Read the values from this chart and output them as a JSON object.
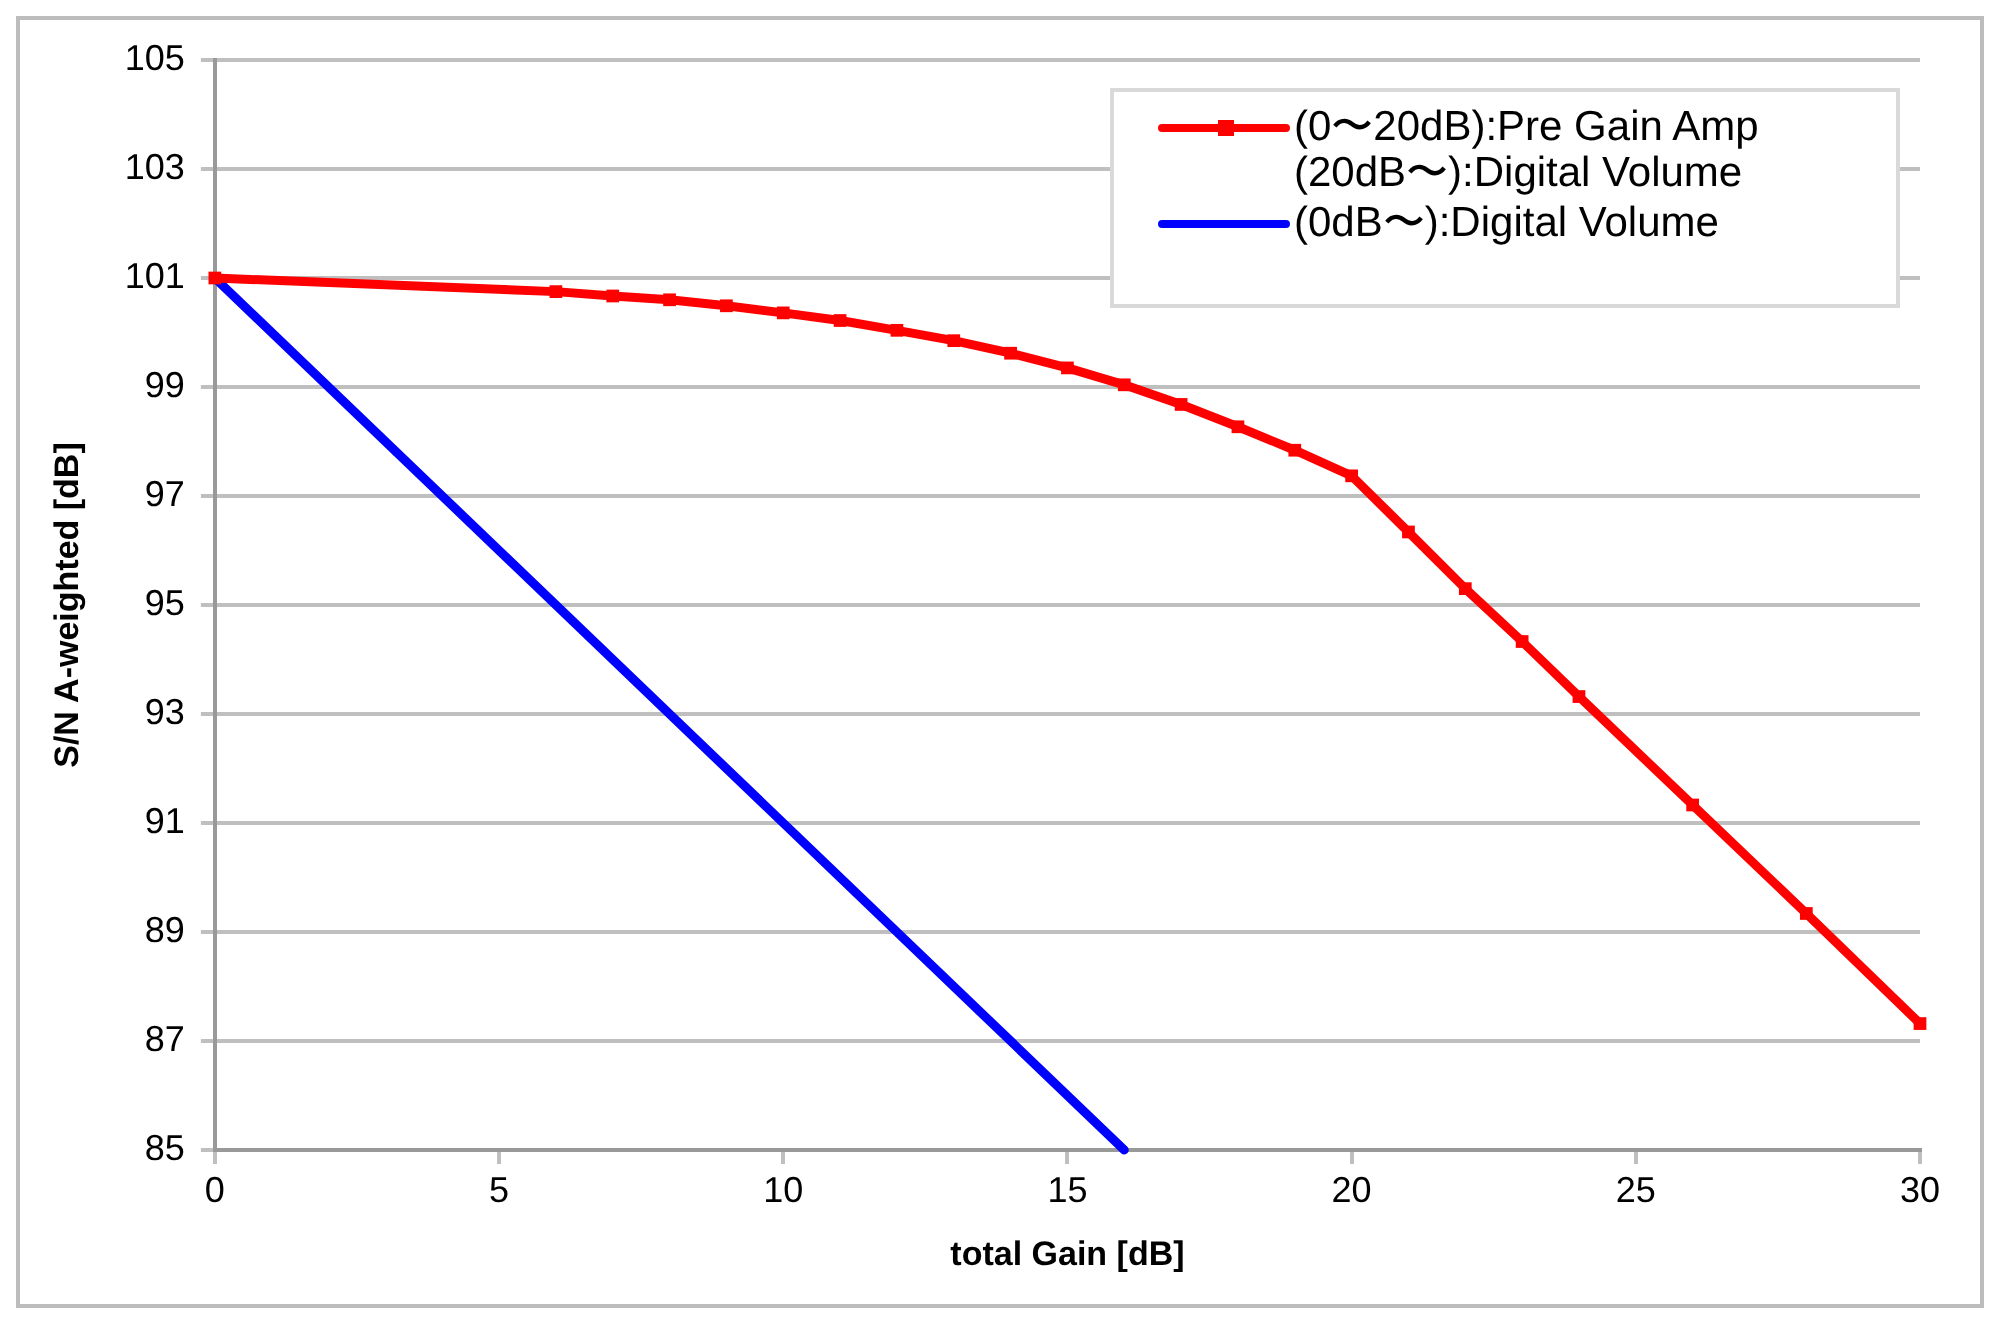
{
  "chart_data": {
    "type": "line",
    "xlabel": "total Gain [dB]",
    "ylabel": "S/N A-weighted [dB]",
    "xlim": [
      0,
      30
    ],
    "xticks": [
      0,
      5,
      10,
      15,
      20,
      25,
      30
    ],
    "ylim": [
      85,
      105
    ],
    "yticks": [
      85,
      87,
      89,
      91,
      93,
      95,
      97,
      99,
      101,
      103,
      105
    ],
    "grid": "y",
    "legend": "top right",
    "line_style": "solid",
    "series": [
      {
        "name": "(0〜20dB):Pre Gain Amp\n(20dB〜):Digital Volume",
        "color": "#ff0000",
        "marker": "square",
        "x": [
          0,
          6,
          7,
          8,
          9,
          10,
          11,
          12,
          13,
          14,
          15,
          16,
          17,
          18,
          19,
          20,
          21,
          22,
          23,
          24,
          26,
          28,
          30
        ],
        "values": [
          101,
          100.75,
          100.67,
          100.6,
          100.49,
          100.36,
          100.22,
          100.04,
          99.85,
          99.62,
          99.35,
          99.04,
          98.68,
          98.27,
          97.84,
          97.37,
          96.34,
          95.3,
          94.33,
          93.32,
          91.33,
          89.34,
          87.32
        ]
      },
      {
        "name": "(0dB〜):Digital Volume",
        "color": "#0000ff",
        "marker": "none",
        "x": [
          0,
          16
        ],
        "values": [
          101,
          85
        ]
      }
    ]
  }
}
